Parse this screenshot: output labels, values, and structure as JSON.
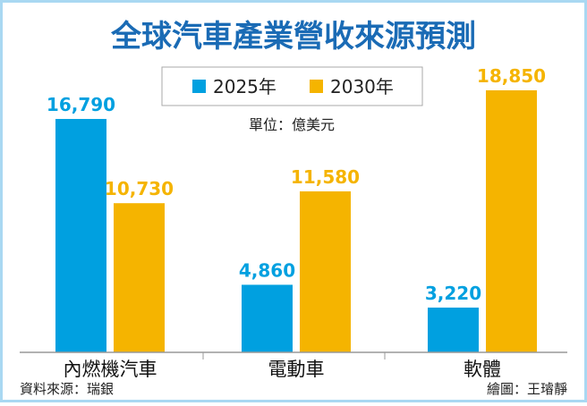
{
  "chart_data": {
    "type": "bar",
    "title": "全球汽車產業營收來源預測",
    "unit": "單位：億美元",
    "categories": [
      "內燃機汽車",
      "電動車",
      "軟體"
    ],
    "series": [
      {
        "name": "2025年",
        "values": [
          16790,
          4860,
          3220
        ],
        "labels": [
          "16,790",
          "4,860",
          "3,220"
        ],
        "color": "#00a0e0"
      },
      {
        "name": "2030年",
        "values": [
          10730,
          11580,
          18850
        ],
        "labels": [
          "10,730",
          "11,580",
          "18,850"
        ],
        "color": "#f5b400"
      }
    ],
    "ylim": [
      0,
      18850
    ],
    "grid": false,
    "legend_placement": "top-center",
    "source": "資料來源：瑞銀",
    "credit": "繪圖：王璿靜"
  },
  "colors": {
    "title": "#1a6bb5",
    "frame": "#a9d8f2",
    "axis": "#999999"
  }
}
